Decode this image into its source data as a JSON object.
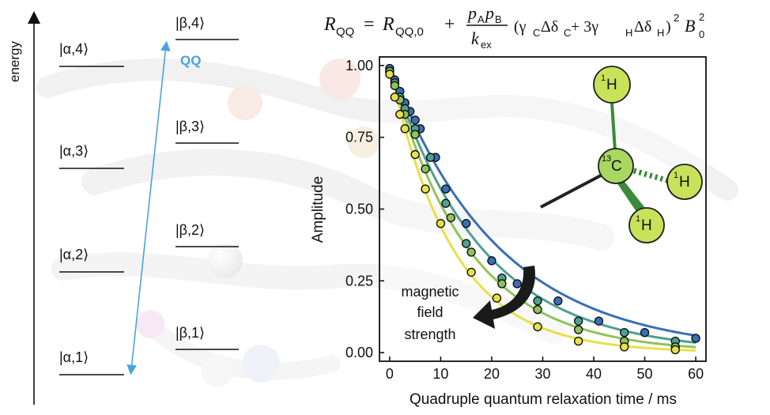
{
  "energy_diagram": {
    "axis_label": "energy",
    "alpha_levels": [
      "|α,4⟩",
      "|α,3⟩",
      "|α,2⟩",
      "|α,1⟩"
    ],
    "beta_levels": [
      "|β,4⟩",
      "|β,3⟩",
      "|β,2⟩",
      "|β,1⟩"
    ],
    "transition_label": "QQ",
    "transition_color": "#4aa3e0"
  },
  "equation": {
    "lhs": "R",
    "lhs_sub": "QQ",
    "equals": "=",
    "r0": "R",
    "r0_sub": "QQ,0",
    "plus": "+",
    "num_p": "p",
    "num_a": "A",
    "num_p2": "p",
    "num_b": "B",
    "den_k": "k",
    "den_sub": "ex",
    "paren_open": "(γ",
    "c_sub": "C",
    "delta_c": "Δδ",
    "plus3": " + 3γ",
    "h_sub": "H",
    "delta_h": "Δδ",
    "paren_close": ")",
    "power": "2",
    "b": "B",
    "b_sup": "2",
    "b_sub": "0"
  },
  "molecule": {
    "center": "C",
    "center_iso": "13",
    "h": "H",
    "h_iso": "1",
    "center_color": "#7cc48a",
    "h_color": "#c8e35a",
    "bond_color": "#3a8a3a"
  },
  "annotation": {
    "lines": [
      "magnetic",
      "field",
      "strength"
    ]
  },
  "chart_data": {
    "type": "scatter",
    "xlabel": "Quadruple quantum relaxation time / ms",
    "ylabel": "Amplitude",
    "xlim": [
      -2,
      62
    ],
    "ylim": [
      -0.03,
      1.03
    ],
    "xticks": [
      "0",
      "10",
      "20",
      "30",
      "40",
      "50",
      "60"
    ],
    "yticks": [
      "0.00",
      "0.25",
      "0.50",
      "0.75",
      "1.00"
    ],
    "xtick_values": [
      0,
      10,
      20,
      30,
      40,
      50,
      60
    ],
    "ytick_values": [
      0,
      0.25,
      0.5,
      0.75,
      1.0
    ],
    "series": [
      {
        "color": "#3a6fb5",
        "points": [
          [
            0,
            0.99
          ],
          [
            1,
            0.95
          ],
          [
            2,
            0.91
          ],
          [
            3,
            0.87
          ],
          [
            4,
            0.84
          ],
          [
            5,
            0.81
          ],
          [
            6,
            0.78
          ],
          [
            9,
            0.68
          ],
          [
            11,
            0.57
          ],
          [
            15,
            0.45
          ],
          [
            20,
            0.32
          ],
          [
            25,
            0.24
          ],
          [
            33,
            0.18
          ],
          [
            41,
            0.11
          ],
          [
            50,
            0.07
          ],
          [
            60,
            0.05
          ]
        ],
        "fit_decay": 0.047
      },
      {
        "color": "#4fa090",
        "points": [
          [
            0,
            0.98
          ],
          [
            1,
            0.94
          ],
          [
            2,
            0.89
          ],
          [
            3,
            0.85
          ],
          [
            5,
            0.78
          ],
          [
            8,
            0.68
          ],
          [
            11,
            0.52
          ],
          [
            15,
            0.38
          ],
          [
            22,
            0.26
          ],
          [
            29,
            0.18
          ],
          [
            37,
            0.11
          ],
          [
            46,
            0.07
          ],
          [
            56,
            0.04
          ]
        ],
        "fit_decay": 0.056
      },
      {
        "color": "#8fc45a",
        "points": [
          [
            0,
            0.98
          ],
          [
            1,
            0.93
          ],
          [
            2,
            0.88
          ],
          [
            3,
            0.83
          ],
          [
            5,
            0.76
          ],
          [
            7,
            0.64
          ],
          [
            12,
            0.47
          ],
          [
            16,
            0.35
          ],
          [
            22,
            0.24
          ],
          [
            29,
            0.15
          ],
          [
            37,
            0.08
          ],
          [
            46,
            0.04
          ],
          [
            56,
            0.02
          ]
        ],
        "fit_decay": 0.066
      },
      {
        "color": "#e8e04a",
        "points": [
          [
            0,
            0.97
          ],
          [
            1,
            0.89
          ],
          [
            2,
            0.83
          ],
          [
            3,
            0.78
          ],
          [
            5,
            0.69
          ],
          [
            7,
            0.57
          ],
          [
            10,
            0.45
          ],
          [
            16,
            0.28
          ],
          [
            21,
            0.19
          ],
          [
            29,
            0.09
          ],
          [
            37,
            0.04
          ],
          [
            46,
            0.02
          ],
          [
            56,
            0.01
          ]
        ],
        "fit_decay": 0.082
      }
    ]
  }
}
